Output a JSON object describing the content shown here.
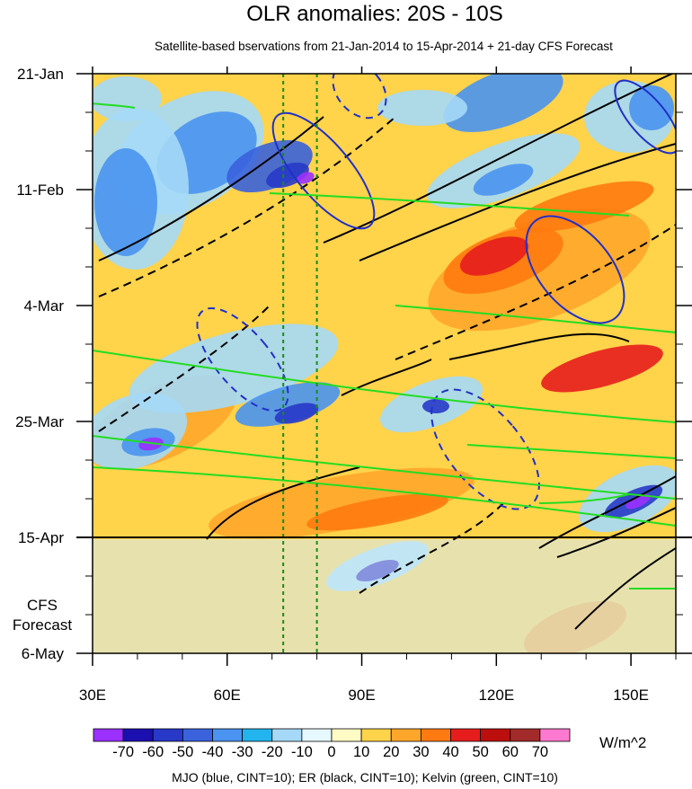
{
  "chart_data": {
    "type": "heatmap",
    "title": "OLR anomalies: 20S - 10S",
    "subtitle": "Satellite-based bservations from 21-Jan-2014 to 15-Apr-2014 + 21-day CFS Forecast",
    "x_ticks": [
      {
        "label": "30E",
        "value": 30
      },
      {
        "label": "60E",
        "value": 60
      },
      {
        "label": "90E",
        "value": 90
      },
      {
        "label": "120E",
        "value": 120
      },
      {
        "label": "150E",
        "value": 150
      }
    ],
    "xlim": [
      30,
      160
    ],
    "y_ticks": [
      {
        "label": "21-Jan",
        "value": "2014-01-21"
      },
      {
        "label": "11-Feb",
        "value": "2014-02-11"
      },
      {
        "label": "4-Mar",
        "value": "2014-03-04"
      },
      {
        "label": "25-Mar",
        "value": "2014-03-25"
      },
      {
        "label": "15-Apr",
        "value": "2014-04-15"
      },
      {
        "label": "6-May",
        "value": "2014-05-06"
      }
    ],
    "forecast_label": "CFS\nForecast",
    "forecast_line": "2014-04-15",
    "reference_lines_lon": [
      72.5,
      80
    ],
    "colorbar": {
      "levels": [
        -70,
        -60,
        -50,
        -40,
        -30,
        -20,
        -10,
        0,
        10,
        20,
        30,
        40,
        50,
        60,
        70
      ],
      "labels": [
        "-70",
        "-60",
        "-50",
        "-40",
        "-30",
        "-20",
        "-10",
        "0",
        "10",
        "20",
        "30",
        "40",
        "50",
        "60",
        "70"
      ],
      "colors": [
        "#9b30ff",
        "#1c0fb0",
        "#2838c8",
        "#3a62dc",
        "#4a93f0",
        "#22b4ee",
        "#a5d9f7",
        "#e6f8ff",
        "#fffbc4",
        "#ffd34a",
        "#ffa62b",
        "#ff7a10",
        "#e71d1d",
        "#bd0e0e",
        "#a22a2a",
        "#ff79d0"
      ],
      "units": "W/m^2"
    },
    "footer": "MJO (blue, CINT=10); ER (black, CINT=10); Kelvin (green, CINT=10)",
    "contour_colors": {
      "MJO": "#2030c8",
      "ER": "#000000",
      "Kelvin": "#22dd22"
    }
  }
}
